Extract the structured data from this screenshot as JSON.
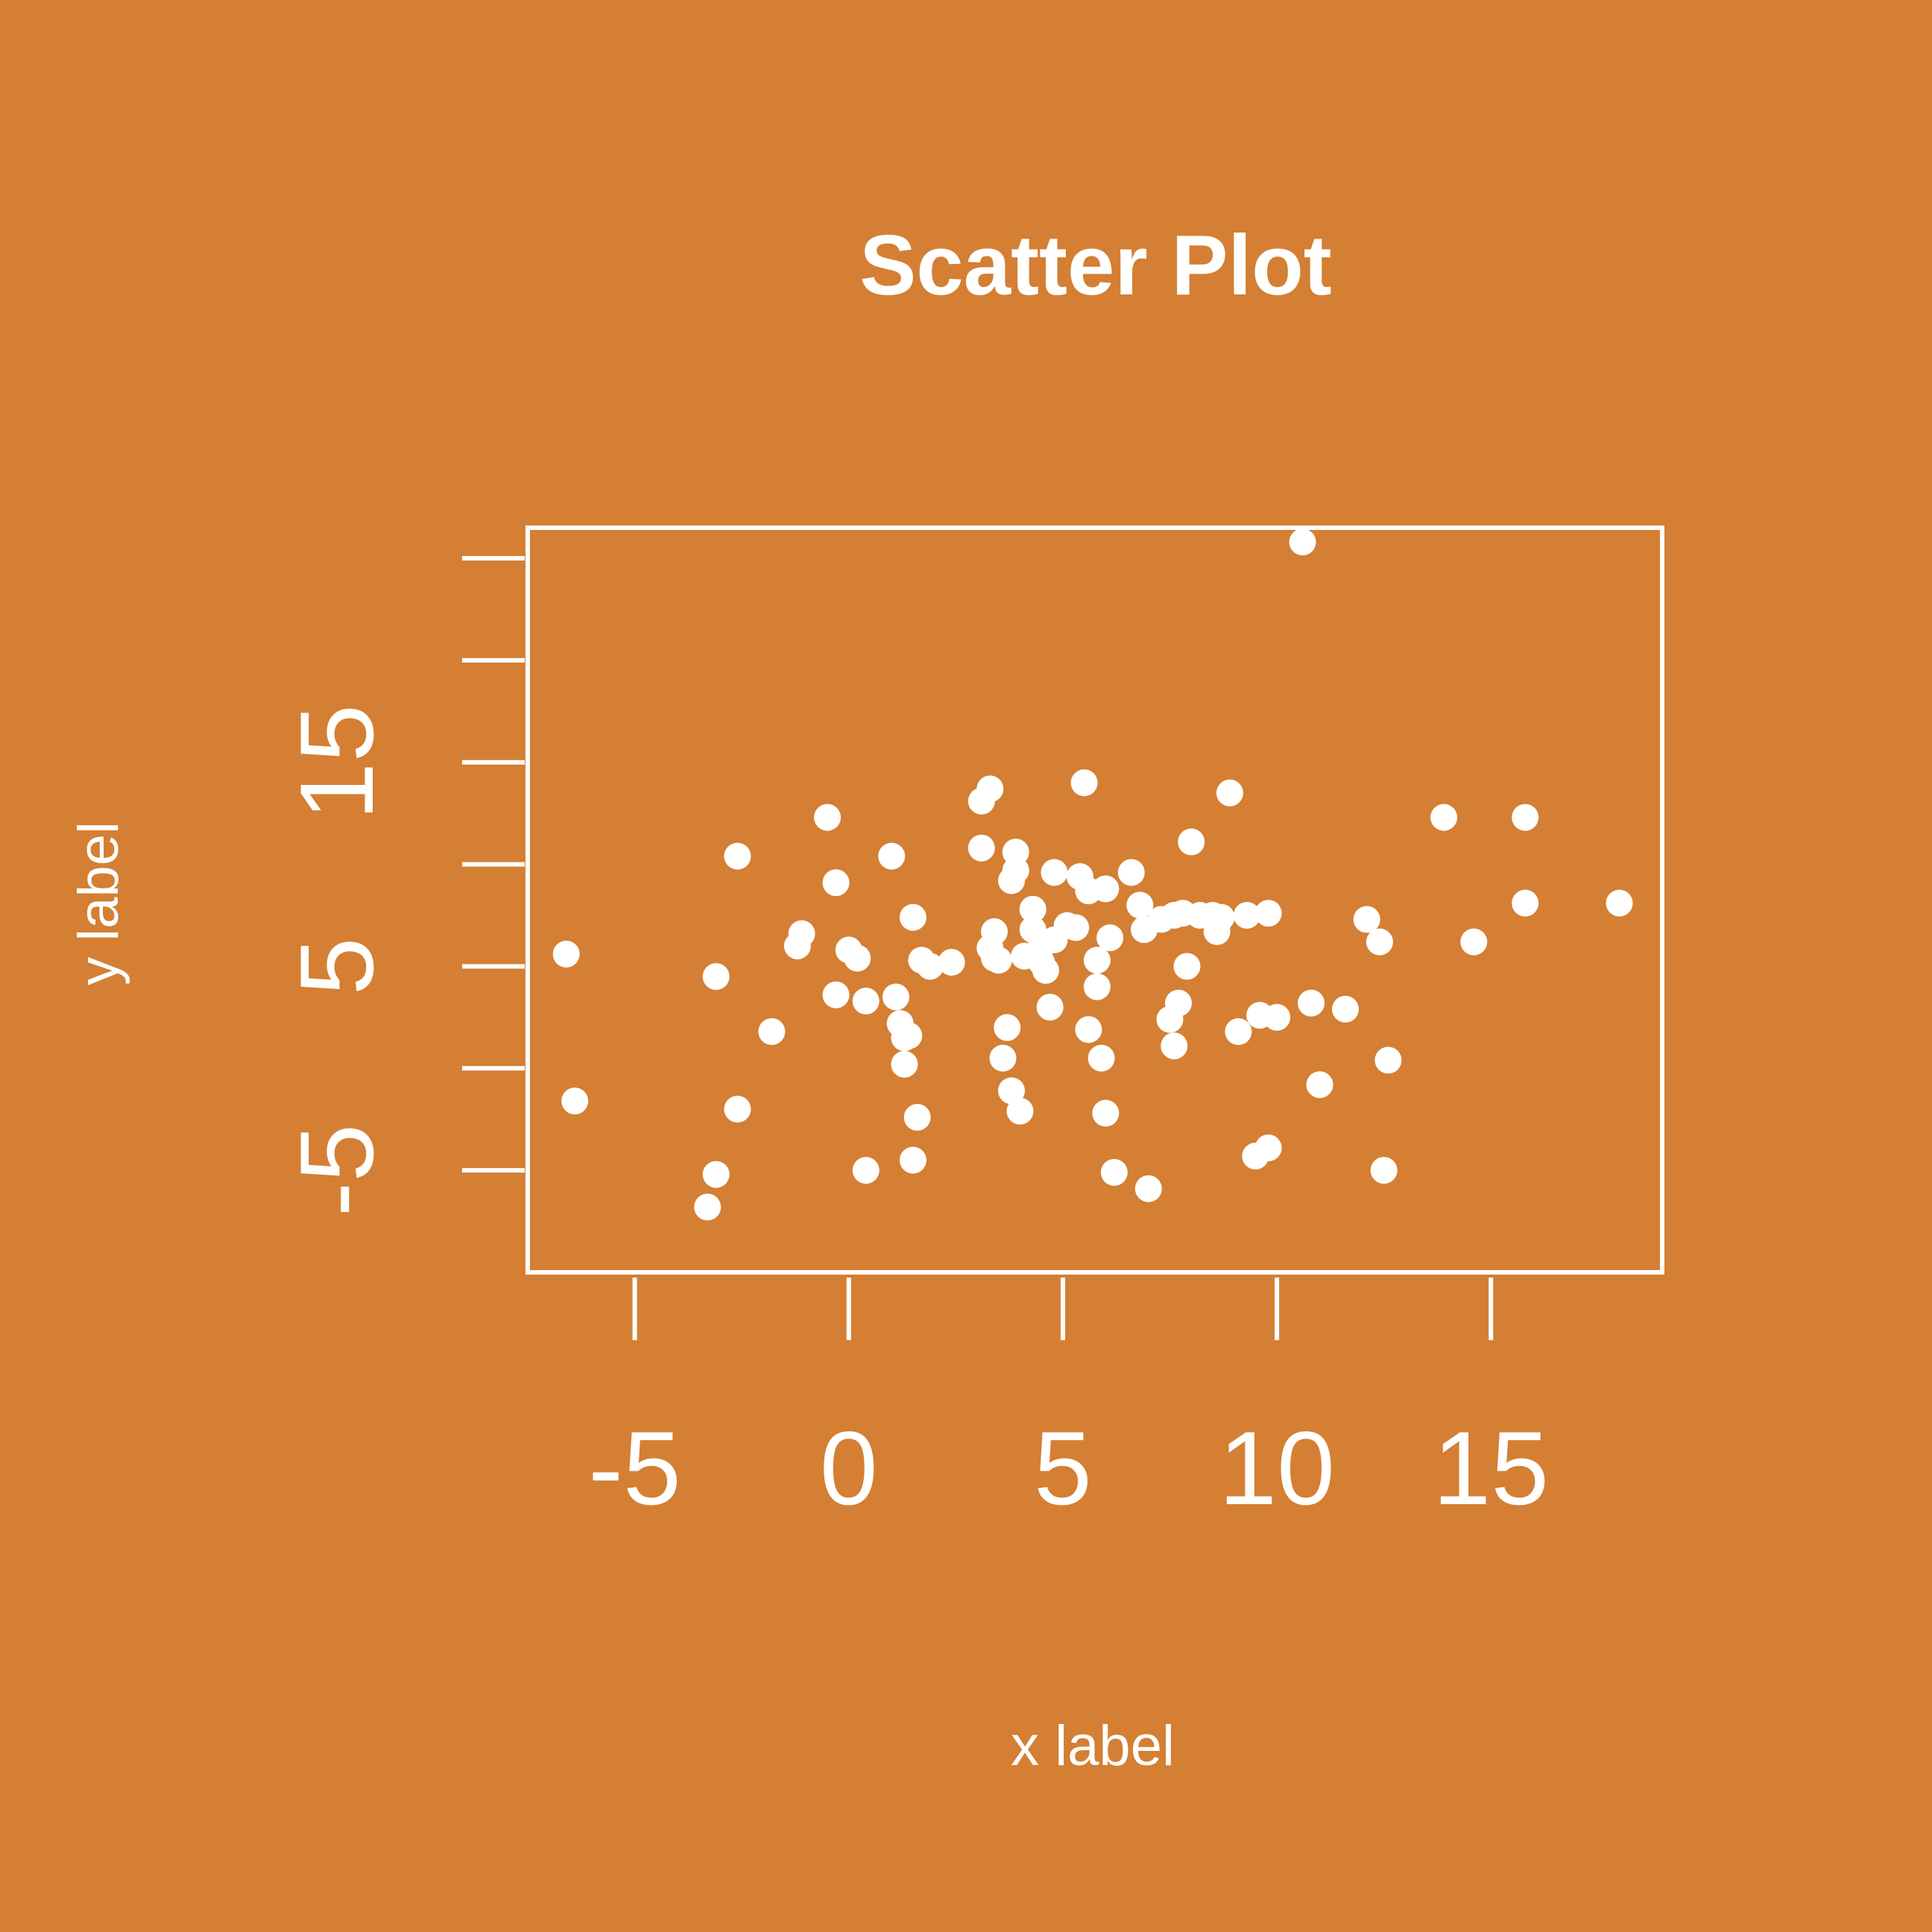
{
  "colors": {
    "background": "#D47F33",
    "foreground": "#FFFFFF"
  },
  "chart_data": {
    "type": "scatter",
    "title": "Scatter Plot",
    "xlabel": "x label",
    "ylabel": "y label",
    "xlim": [
      -7.5,
      19.0
    ],
    "ylim": [
      -10.0,
      26.5
    ],
    "xticks": [
      -5,
      0,
      5,
      10,
      15
    ],
    "xtick_labels": [
      "-5",
      "0",
      "5",
      "10",
      "15"
    ],
    "yticks": [
      -5,
      0,
      5,
      10,
      15,
      20,
      25
    ],
    "ytick_labels": [
      "-5",
      "",
      "5",
      "",
      "15",
      "",
      ""
    ],
    "grid": false,
    "box": true,
    "marker": "filled-circle",
    "series": [
      {
        "x": [
          10.6,
          -6.6,
          -6.4,
          -3.3,
          -3.1,
          -3.1,
          -2.6,
          -2.6,
          -1.8,
          -0.5,
          -1.2,
          -1.1,
          -0.3,
          0.0,
          0.2,
          0.4,
          -0.3,
          0.4,
          1.1,
          1.0,
          1.2,
          1.6,
          1.3,
          1.3,
          1.4,
          1.5,
          1.5,
          1.7,
          1.9,
          2.4,
          3.1,
          3.3,
          3.1,
          3.4,
          3.3,
          3.4,
          3.7,
          3.6,
          3.8,
          3.5,
          3.8,
          3.9,
          3.9,
          4.0,
          4.3,
          4.1,
          4.3,
          4.5,
          4.8,
          4.8,
          4.6,
          4.5,
          4.7,
          5.1,
          5.3,
          5.5,
          5.4,
          5.6,
          5.6,
          5.8,
          5.8,
          5.9,
          6.0,
          6.0,
          6.2,
          6.1,
          6.6,
          6.8,
          6.9,
          7.0,
          7.3,
          7.5,
          7.6,
          7.6,
          7.7,
          7.8,
          7.9,
          8.0,
          8.2,
          8.5,
          8.6,
          8.7,
          8.9,
          9.1,
          9.3,
          9.6,
          9.5,
          9.8,
          9.8,
          10.0,
          10.8,
          11.0,
          11.6,
          12.1,
          12.4,
          12.5,
          12.6,
          13.9,
          14.6,
          15.8,
          15.8,
          18.0
        ],
        "y": [
          25.8,
          5.6,
          -1.6,
          -6.8,
          -5.2,
          4.5,
          -2.0,
          10.4,
          1.8,
          12.3,
          6.0,
          6.6,
          9.1,
          5.8,
          5.4,
          3.3,
          3.6,
          -5.0,
          3.5,
          10.4,
          2.2,
          -2.4,
          1.5,
          0.2,
          1.6,
          -4.5,
          7.4,
          5.3,
          5.0,
          5.2,
          10.8,
          13.7,
          13.1,
          6.7,
          5.9,
          5.4,
          2.0,
          0.5,
          9.2,
          5.3,
          -1.1,
          10.6,
          9.7,
          -2.1,
          7.8,
          5.5,
          6.8,
          5.2,
          6.3,
          9.6,
          4.8,
          6.0,
          3.0,
          7.0,
          6.9,
          14.0,
          9.4,
          8.7,
          1.9,
          5.3,
          4.0,
          0.5,
          8.8,
          -2.2,
          -5.1,
          6.4,
          9.6,
          8.0,
          6.8,
          -5.9,
          7.3,
          2.4,
          1.1,
          7.5,
          3.2,
          7.6,
          5.0,
          11.1,
          7.5,
          7.5,
          6.7,
          7.4,
          13.5,
          1.8,
          7.5,
          2.6,
          -4.3,
          7.6,
          -3.9,
          2.5,
          3.2,
          -0.8,
          2.9,
          7.3,
          6.2,
          -5.0,
          0.4,
          12.3,
          6.2,
          12.3,
          8.1,
          8.1
        ]
      }
    ]
  }
}
